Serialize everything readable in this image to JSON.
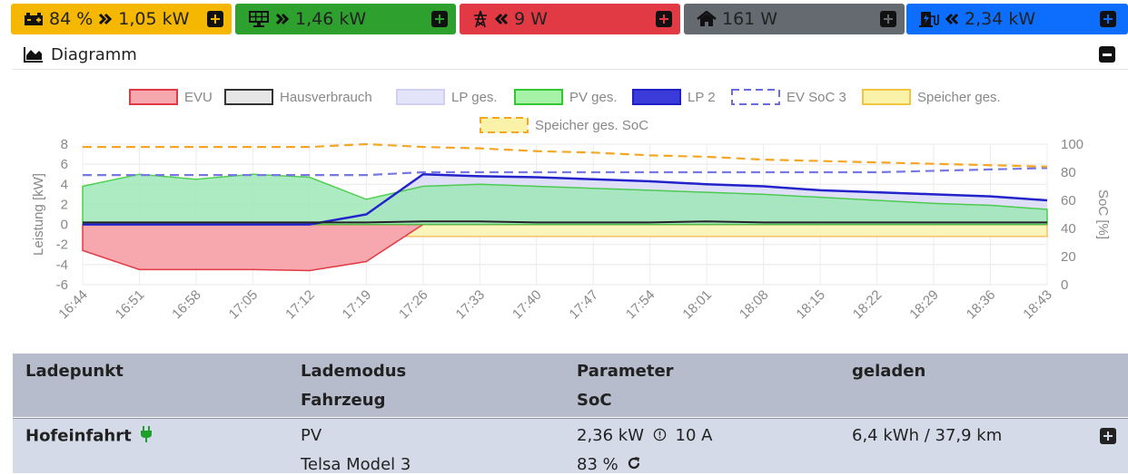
{
  "colors": {
    "battery": "#f5b700",
    "pv": "#2ea02e",
    "grid": "#e23a44",
    "house": "#646a70",
    "ev": "#0d6efd"
  },
  "tiles": [
    {
      "id": "battery",
      "icon": "battery-icon",
      "chevron": "double-right",
      "value": "84 % ",
      "value2": "1,05 kW"
    },
    {
      "id": "pv",
      "icon": "solar-panel-icon",
      "chevron": "double-right",
      "value": "1,46 kW"
    },
    {
      "id": "grid",
      "icon": "power-tower-icon",
      "chevron": "double-left",
      "value": "9 W"
    },
    {
      "id": "house",
      "icon": "home-icon",
      "chevron": "",
      "value": "161 W"
    },
    {
      "id": "ev",
      "icon": "charging-station-icon",
      "chevron": "double-left",
      "value": "2,34 kW"
    }
  ],
  "diagram": {
    "title": "Diagramm",
    "icon": "area-chart-icon",
    "collapse_icon": "minus-square-icon"
  },
  "chart_data": {
    "type": "line",
    "legend": [
      "EVU",
      "Hausverbrauch",
      "LP ges.",
      "PV ges.",
      "LP 2",
      "EV SoC 3",
      "Speicher ges.",
      "Speicher ges. SoC"
    ],
    "ylabel": "Leistung [kW]",
    "y2label": "SoC [%]",
    "ylim": [
      -6,
      8
    ],
    "y2lim": [
      0,
      100
    ],
    "yticks": [
      "8",
      "6",
      "4",
      "2",
      "0",
      "-2",
      "-4",
      "-6"
    ],
    "y2ticks": [
      "100",
      "80",
      "60",
      "40",
      "20",
      "0"
    ],
    "xticks": [
      "16:44",
      "16:51",
      "16:58",
      "17:05",
      "17:12",
      "17:19",
      "17:26",
      "17:33",
      "17:40",
      "17:47",
      "17:54",
      "18:01",
      "18:08",
      "18:15",
      "18:22",
      "18:29",
      "18:36",
      "18:43"
    ],
    "series": [
      {
        "name": "EVU",
        "values": [
          -2.6,
          -4.5,
          -4.5,
          -4.5,
          -4.6,
          -3.7,
          0,
          0,
          0,
          0,
          0,
          0,
          0,
          0,
          0,
          0,
          0,
          0
        ]
      },
      {
        "name": "Hausverbrauch",
        "values": [
          0.2,
          0.2,
          0.2,
          0.2,
          0.2,
          0.2,
          0.3,
          0.3,
          0.2,
          0.2,
          0.2,
          0.3,
          0.2,
          0.2,
          0.2,
          0.2,
          0.2,
          0.2
        ]
      },
      {
        "name": "PV ges.",
        "values": [
          3.8,
          5,
          4.5,
          5,
          4.7,
          2.5,
          3.8,
          4,
          3.8,
          3.6,
          3.4,
          3.2,
          3,
          2.7,
          2.4,
          2.1,
          1.9,
          1.5
        ]
      },
      {
        "name": "LP 2",
        "values": [
          0,
          0,
          0,
          0,
          0,
          1,
          5,
          4.8,
          4.7,
          4.5,
          4.3,
          4,
          3.8,
          3.4,
          3.2,
          3,
          2.8,
          2.4
        ]
      },
      {
        "name": "EV SoC 3",
        "values": [
          78,
          78,
          78,
          78,
          78,
          78,
          80,
          80,
          80,
          80,
          80,
          80,
          80,
          80,
          80,
          81,
          82,
          83
        ]
      },
      {
        "name": "Speicher ges. SoC",
        "values": [
          98,
          98,
          98,
          98,
          98,
          100,
          98,
          97,
          95,
          94,
          92,
          91,
          89,
          88,
          87,
          86,
          85,
          84
        ]
      }
    ]
  },
  "table": {
    "headers": [
      "Ladepunkt",
      "Lademodus",
      "Parameter",
      "geladen"
    ],
    "subheaders": [
      "",
      "Fahrzeug",
      "SoC",
      ""
    ],
    "row": {
      "name": "Hofeinfahrt",
      "mode": "PV",
      "power": "2,36 kW",
      "current": "10 A",
      "charged": "6,4 kWh / 37,9 km",
      "vehicle": "Telsa Model 3",
      "soc": "83 %"
    }
  }
}
